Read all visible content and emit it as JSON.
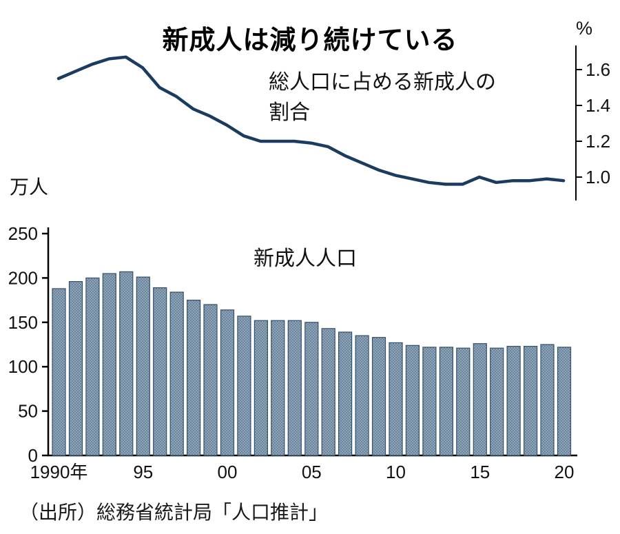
{
  "page_title": "新成人は減り続けている",
  "source_note": "（出所）総務省統計局「人口推計」",
  "chart_data": [
    {
      "type": "line",
      "title": "総人口に占める新成人の割合",
      "annotation_display": "総人口に占める新成人の\n割合",
      "unit": "%",
      "x": [
        1990,
        1991,
        1992,
        1993,
        1994,
        1995,
        1996,
        1997,
        1998,
        1999,
        2000,
        2001,
        2002,
        2003,
        2004,
        2005,
        2006,
        2007,
        2008,
        2009,
        2010,
        2011,
        2012,
        2013,
        2014,
        2015,
        2016,
        2017,
        2018,
        2019,
        2020
      ],
      "values": [
        1.55,
        1.59,
        1.63,
        1.66,
        1.67,
        1.61,
        1.5,
        1.45,
        1.38,
        1.34,
        1.29,
        1.23,
        1.2,
        1.2,
        1.2,
        1.19,
        1.17,
        1.12,
        1.08,
        1.04,
        1.01,
        0.99,
        0.97,
        0.96,
        0.96,
        1.0,
        0.97,
        0.98,
        0.98,
        0.99,
        0.98
      ],
      "yticks": [
        1.0,
        1.2,
        1.4,
        1.6
      ],
      "ytick_labels": [
        "1.0",
        "1.2",
        "1.4",
        "1.6"
      ],
      "ylim": [
        0.87,
        1.73
      ],
      "axis_side": "right",
      "grid": false,
      "line_color": "#1b3c5f",
      "axis_color": "#000000"
    },
    {
      "type": "bar",
      "title": "新成人人口",
      "unit": "万人",
      "categories": [
        1990,
        1991,
        1992,
        1993,
        1994,
        1995,
        1996,
        1997,
        1998,
        1999,
        2000,
        2001,
        2002,
        2003,
        2004,
        2005,
        2006,
        2007,
        2008,
        2009,
        2010,
        2011,
        2012,
        2013,
        2014,
        2015,
        2016,
        2017,
        2018,
        2019,
        2020
      ],
      "values": [
        188,
        196,
        200,
        205,
        207,
        201,
        189,
        184,
        175,
        170,
        164,
        157,
        152,
        152,
        152,
        150,
        143,
        139,
        135,
        133,
        127,
        124,
        122,
        122,
        121,
        126,
        121,
        123,
        123,
        125,
        122
      ],
      "yticks": [
        0,
        50,
        100,
        150,
        200,
        250
      ],
      "ylim": [
        0,
        250
      ],
      "xticks": [
        {
          "year": 1990,
          "label": "1990年"
        },
        {
          "year": 1995,
          "label": "95"
        },
        {
          "year": 2000,
          "label": "00"
        },
        {
          "year": 2005,
          "label": "05"
        },
        {
          "year": 2010,
          "label": "10"
        },
        {
          "year": 2015,
          "label": "15"
        },
        {
          "year": 2020,
          "label": "20"
        }
      ],
      "grid": false,
      "bar_color": "#8aa1b6",
      "bar_dot_color": "#4e6880",
      "bar_edge_color": "#33506b",
      "axis_color": "#000000"
    }
  ]
}
